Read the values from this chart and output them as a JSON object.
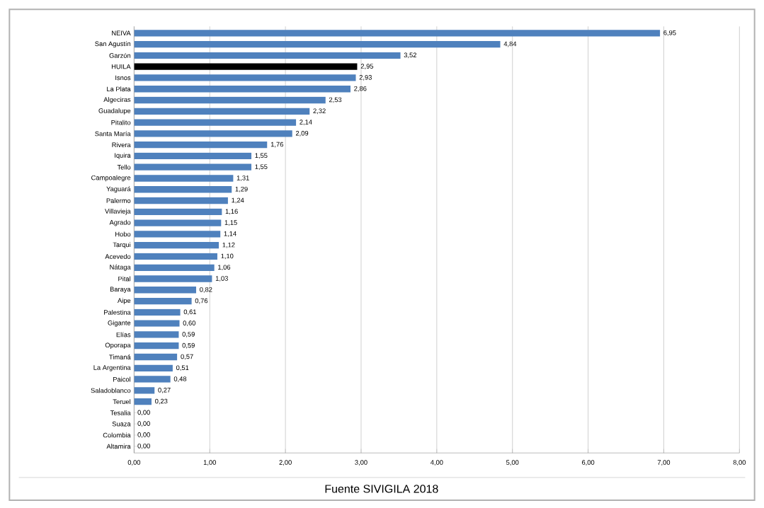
{
  "chart_data": {
    "type": "bar",
    "orientation": "horizontal",
    "categories": [
      "NEIVA",
      "San Agustín",
      "Garzón",
      "HUILA",
      "Isnos",
      "La Plata",
      "Algeciras",
      "Guadalupe",
      "Pitalito",
      "Santa María",
      "Rivera",
      "Iquira",
      "Tello",
      "Campoalegre",
      "Yaguará",
      "Palermo",
      "Villavieja",
      "Agrado",
      "Hobo",
      "Tarqui",
      "Acevedo",
      "Nátaga",
      "Pital",
      "Baraya",
      "Aipe",
      "Palestina",
      "Gigante",
      "Elías",
      "Oporapa",
      "Timaná",
      "La Argentina",
      "Paicol",
      "Saladoblanco",
      "Teruel",
      "Tesalia",
      "Suaza",
      "Colombia",
      "Altamira"
    ],
    "values": [
      6.95,
      4.84,
      3.52,
      2.95,
      2.93,
      2.86,
      2.53,
      2.32,
      2.14,
      2.09,
      1.76,
      1.55,
      1.55,
      1.31,
      1.29,
      1.24,
      1.16,
      1.15,
      1.14,
      1.12,
      1.1,
      1.06,
      1.03,
      0.82,
      0.76,
      0.61,
      0.6,
      0.59,
      0.59,
      0.57,
      0.51,
      0.48,
      0.27,
      0.23,
      0,
      0,
      0,
      0
    ],
    "value_labels": [
      "6,95",
      "4,84",
      "3,52",
      "2,95",
      "2,93",
      "2,86",
      "2,53",
      "2,32",
      "2,14",
      "2,09",
      "1,76",
      "1,55",
      "1,55",
      "1,31",
      "1,29",
      "1,24",
      "1,16",
      "1,15",
      "1,14",
      "1,12",
      "1,10",
      "1,06",
      "1,03",
      "0,82",
      "0,76",
      "0,61",
      "0,60",
      "0,59",
      "0,59",
      "0,57",
      "0,51",
      "0,48",
      "0,27",
      "0,23",
      "0,00",
      "0,00",
      "0,00",
      "0,00"
    ],
    "colors": [
      "#4f81bd",
      "#4f81bd",
      "#4f81bd",
      "#000000",
      "#4f81bd",
      "#4f81bd",
      "#4f81bd",
      "#4f81bd",
      "#4f81bd",
      "#4f81bd",
      "#4f81bd",
      "#4f81bd",
      "#4f81bd",
      "#4f81bd",
      "#4f81bd",
      "#4f81bd",
      "#4f81bd",
      "#4f81bd",
      "#4f81bd",
      "#4f81bd",
      "#4f81bd",
      "#4f81bd",
      "#4f81bd",
      "#4f81bd",
      "#4f81bd",
      "#4f81bd",
      "#4f81bd",
      "#4f81bd",
      "#4f81bd",
      "#4f81bd",
      "#4f81bd",
      "#4f81bd",
      "#4f81bd",
      "#4f81bd",
      "#4f81bd",
      "#4f81bd",
      "#4f81bd",
      "#4f81bd"
    ],
    "xlim": [
      0,
      8
    ],
    "xticks": [
      {
        "value": 0,
        "label": "0,00"
      },
      {
        "value": 1,
        "label": "1,00"
      },
      {
        "value": 2,
        "label": "2,00"
      },
      {
        "value": 3,
        "label": "3,00"
      },
      {
        "value": 4,
        "label": "4,00"
      },
      {
        "value": 5,
        "label": "5,00"
      },
      {
        "value": 6,
        "label": "6,00"
      },
      {
        "value": 7,
        "label": "7,00"
      },
      {
        "value": 8,
        "label": "8,00"
      }
    ],
    "grid": "x",
    "annotations": [
      "Fuente SIVIGILA 2018"
    ]
  }
}
